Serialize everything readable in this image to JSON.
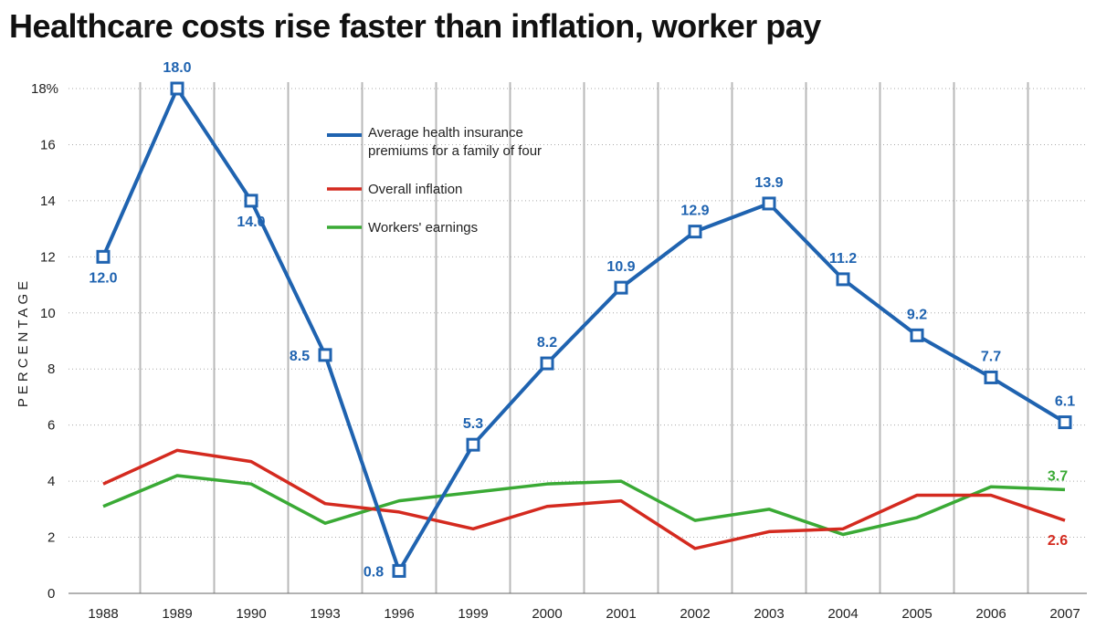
{
  "chart_data": {
    "type": "line",
    "title": "Healthcare costs rise faster than inflation, worker pay",
    "xlabel": "",
    "ylabel": "PERCENTAGE",
    "ylim": [
      0,
      18
    ],
    "yticks": [
      "0",
      "2",
      "4",
      "6",
      "8",
      "10",
      "12",
      "14",
      "16",
      "18%"
    ],
    "categories": [
      "1988",
      "1989",
      "1990",
      "1993",
      "1996",
      "1999",
      "2000",
      "2001",
      "2002",
      "2003",
      "2004",
      "2005",
      "2006",
      "2007"
    ],
    "grid": true,
    "legend_position": "top-center",
    "series": [
      {
        "name": "Average health insurance premiums for a family of four",
        "legend_lines": [
          "Average health insurance",
          "premiums for a family of four"
        ],
        "color": "#1f63b0",
        "values": [
          12.0,
          18.0,
          14.0,
          8.5,
          0.8,
          5.3,
          8.2,
          10.9,
          12.9,
          13.9,
          11.2,
          9.2,
          7.7,
          6.1
        ],
        "labels": [
          "12.0",
          "18.0",
          "14.0",
          "8.5",
          "0.8",
          "5.3",
          "8.2",
          "10.9",
          "12.9",
          "13.9",
          "11.2",
          "9.2",
          "7.7",
          "6.1"
        ]
      },
      {
        "name": "Overall inflation",
        "color": "#d42a1f",
        "values": [
          3.9,
          5.1,
          4.7,
          3.2,
          2.9,
          2.3,
          3.1,
          3.3,
          1.6,
          2.2,
          2.3,
          3.5,
          3.5,
          2.6
        ],
        "end_label": "2.6"
      },
      {
        "name": "Workers' earnings",
        "color": "#3aaa35",
        "values": [
          3.1,
          4.2,
          3.9,
          2.5,
          3.3,
          3.6,
          3.9,
          4.0,
          2.6,
          3.0,
          2.1,
          2.7,
          3.8,
          3.7
        ],
        "end_label": "3.7"
      }
    ]
  }
}
